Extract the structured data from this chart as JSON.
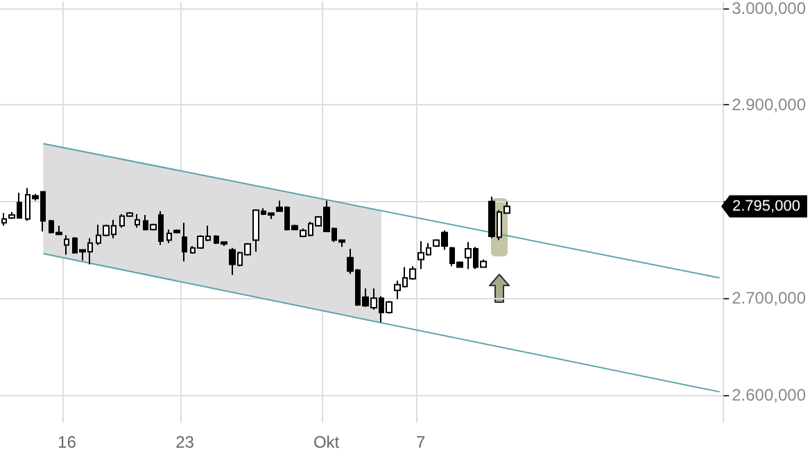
{
  "chart_data": {
    "type": "candlestick",
    "categories": [
      null,
      null,
      null,
      null,
      null,
      null,
      null,
      null,
      "16",
      null,
      null,
      null,
      null,
      null,
      null,
      null,
      null,
      null,
      null,
      null,
      null,
      null,
      null,
      "23",
      null,
      null,
      null,
      null,
      null,
      null,
      null,
      null,
      null,
      null,
      null,
      null,
      null,
      null,
      null,
      null,
      null,
      "Okt",
      null,
      null,
      null,
      null,
      null,
      null,
      null,
      null,
      null,
      null,
      null,
      "7",
      null,
      null,
      null,
      null,
      null,
      null,
      null,
      null,
      null,
      null,
      null,
      null,
      null,
      null,
      null,
      null,
      null,
      null,
      null,
      null,
      null,
      null,
      null,
      null,
      null,
      null,
      null,
      null,
      null,
      null,
      null,
      null,
      null,
      null,
      null,
      null,
      null,
      null
    ],
    "ohlc": [
      [
        2778,
        2788,
        2775,
        2782
      ],
      [
        2783,
        2789,
        2782,
        2786
      ],
      [
        2799,
        2809,
        2783,
        2783
      ],
      [
        2782,
        2814,
        2780,
        2807
      ],
      [
        2806,
        2808,
        2801,
        2803
      ],
      [
        2810,
        2810,
        2769,
        2780
      ],
      [
        2780,
        2781,
        2767,
        2768
      ],
      [
        2768,
        2775,
        2766,
        2766
      ],
      [
        2755,
        2765,
        2745,
        2761
      ],
      [
        2762,
        2763,
        2746,
        2747
      ],
      [
        2750,
        2750,
        2739,
        2748
      ],
      [
        2748,
        2762,
        2735,
        2757
      ],
      [
        2757,
        2776,
        2755,
        2765
      ],
      [
        2765,
        2776,
        2764,
        2775
      ],
      [
        2766,
        2781,
        2762,
        2775
      ],
      [
        2775,
        2787,
        2773,
        2785
      ],
      [
        2785,
        2789,
        2784,
        2788
      ],
      [
        2776,
        2787,
        2773,
        2781
      ],
      [
        2780,
        2786,
        2770,
        2771
      ],
      [
        2771,
        2777,
        2770,
        2776
      ],
      [
        2786,
        2790,
        2755,
        2759
      ],
      [
        2760,
        2771,
        2757,
        2767
      ],
      [
        2770,
        2771,
        2767,
        2768
      ],
      [
        2763,
        2778,
        2738,
        2748
      ],
      [
        2747,
        2754,
        2746,
        2752
      ],
      [
        2752,
        2765,
        2751,
        2764
      ],
      [
        2760,
        2775,
        2759,
        2764
      ],
      [
        2764,
        2765,
        2756,
        2757
      ],
      [
        2758,
        2758,
        2754,
        2756
      ],
      [
        2750,
        2752,
        2724,
        2735
      ],
      [
        2734,
        2748,
        2733,
        2747
      ],
      [
        2745,
        2757,
        2744,
        2756
      ],
      [
        2760,
        2792,
        2748,
        2791
      ],
      [
        2790,
        2793,
        2786,
        2787
      ],
      [
        2788,
        2788,
        2782,
        2786
      ],
      [
        2794,
        2801,
        2790,
        2790
      ],
      [
        2794,
        2795,
        2770,
        2771
      ],
      [
        2775,
        2776,
        2771,
        2771
      ],
      [
        2764,
        2772,
        2763,
        2770
      ],
      [
        2765,
        2779,
        2764,
        2777
      ],
      [
        2775,
        2785,
        2774,
        2784
      ],
      [
        2794,
        2801,
        2769,
        2769
      ],
      [
        2772,
        2773,
        2758,
        2760
      ],
      [
        2760,
        2760,
        2753,
        2758
      ],
      [
        2742,
        2751,
        2725,
        2728
      ],
      [
        2729,
        2730,
        2692,
        2693
      ],
      [
        2701,
        2710,
        2691,
        2692
      ],
      [
        2690,
        2710,
        2688,
        2700
      ],
      [
        2700,
        2702,
        2675,
        2685
      ],
      [
        2685,
        2697,
        2684,
        2696
      ],
      [
        2708,
        2718,
        2699,
        2714
      ],
      [
        2712,
        2732,
        2711,
        2721
      ],
      [
        2720,
        2733,
        2719,
        2730
      ],
      [
        2740,
        2759,
        2730,
        2747
      ],
      [
        2745,
        2757,
        2744,
        2752
      ],
      [
        2754,
        2761,
        2753,
        2760
      ],
      [
        2768,
        2770,
        2750,
        2754
      ],
      [
        2752,
        2753,
        2733,
        2736
      ],
      [
        2737,
        2738,
        2732,
        2732
      ],
      [
        2742,
        2758,
        2730,
        2751
      ],
      [
        2751,
        2753,
        2730,
        2732
      ],
      [
        2732,
        2740,
        2732,
        2738
      ],
      [
        2800,
        2805,
        2762,
        2764
      ],
      [
        2763,
        2791,
        2760,
        2789
      ],
      [
        2788,
        2800,
        2788,
        2795
      ],
      null,
      null,
      null,
      null,
      null,
      null,
      null,
      null,
      null,
      null,
      null,
      null,
      null,
      null,
      null,
      null,
      null,
      null,
      null,
      null,
      null,
      null,
      null,
      null,
      null,
      null,
      null
    ],
    "color": "#000000",
    "series": [
      {
        "type": "line",
        "color": "#5aa5a8",
        "values": [
          null,
          null,
          null,
          null,
          null,
          2860,
          null,
          null,
          null,
          null,
          null,
          null,
          null,
          null,
          null,
          null,
          null,
          null,
          null,
          null,
          null,
          null,
          null,
          null,
          null,
          null,
          null,
          null,
          null,
          null,
          null,
          null,
          null,
          null,
          null,
          null,
          null,
          null,
          null,
          null,
          null,
          null,
          null,
          null,
          null,
          null,
          null,
          null,
          null,
          null,
          null,
          null,
          null,
          null,
          null,
          null,
          null,
          null,
          null,
          null,
          null,
          null,
          null,
          null,
          null,
          null,
          null,
          null,
          null,
          null,
          null,
          null,
          null,
          null,
          null,
          null,
          null,
          null,
          null,
          null,
          null,
          null,
          null,
          null,
          null,
          null,
          null,
          null,
          null,
          null,
          null,
          2721
        ],
        "lower": [
          null,
          null,
          null,
          null,
          null,
          2746,
          null,
          null,
          null,
          null,
          null,
          null,
          null,
          null,
          null,
          null,
          null,
          null,
          null,
          null,
          null,
          null,
          null,
          null,
          null,
          null,
          null,
          null,
          null,
          null,
          null,
          null,
          null,
          null,
          null,
          null,
          null,
          null,
          null,
          null,
          null,
          null,
          null,
          null,
          null,
          null,
          null,
          null,
          2674,
          null,
          null,
          null,
          null,
          null,
          null,
          null,
          null,
          null,
          null,
          null,
          null,
          null,
          null,
          null,
          null,
          null,
          null,
          null,
          null,
          null,
          null,
          null,
          null,
          null,
          null,
          null,
          null,
          null,
          null,
          null,
          null,
          null,
          null,
          null,
          null,
          null,
          null,
          null,
          null,
          null,
          null,
          null
        ],
        "upper": [
          null,
          null,
          null,
          null,
          null,
          2860,
          null,
          null,
          null,
          null,
          null,
          null,
          null,
          null,
          null,
          null,
          null,
          null,
          null,
          null,
          null,
          null,
          null,
          null,
          null,
          null,
          null,
          null,
          null,
          null,
          null,
          null,
          null,
          null,
          null,
          null,
          null,
          null,
          null,
          null,
          null,
          null,
          null,
          null,
          null,
          null,
          null,
          null,
          2791,
          null,
          null,
          null,
          null,
          null,
          null,
          null,
          null,
          null,
          null,
          null,
          null,
          null,
          null,
          null,
          null,
          null,
          null,
          null,
          null,
          null,
          null,
          null,
          null,
          null,
          null,
          null,
          null,
          null,
          null,
          null,
          null,
          null,
          null,
          null,
          null,
          null,
          null,
          null,
          null,
          null,
          null,
          null
        ]
      },
      {
        "type": "line",
        "color": "#5aa5a8",
        "values": [
          null,
          null,
          null,
          null,
          null,
          2746,
          null,
          null,
          null,
          null,
          null,
          null,
          null,
          null,
          null,
          null,
          null,
          null,
          null,
          null,
          null,
          null,
          null,
          null,
          null,
          null,
          null,
          null,
          null,
          null,
          null,
          null,
          null,
          null,
          null,
          null,
          null,
          null,
          null,
          null,
          null,
          null,
          null,
          null,
          null,
          null,
          null,
          null,
          null,
          null,
          null,
          null,
          null,
          null,
          null,
          null,
          null,
          null,
          null,
          null,
          null,
          null,
          null,
          null,
          null,
          null,
          null,
          null,
          null,
          null,
          null,
          null,
          null,
          null,
          null,
          null,
          null,
          null,
          null,
          null,
          null,
          null,
          null,
          null,
          null,
          null,
          null,
          null,
          null,
          null,
          null,
          2603
        ]
      }
    ],
    "ylim": [
      2571,
      3007
    ],
    "yticks": [
      {
        "value": 2600,
        "label": "2.600,000"
      },
      {
        "value": 2700,
        "label": "2.700,000"
      },
      {
        "value": 2800,
        "label": null
      },
      {
        "value": 2900,
        "label": "2.900,000"
      },
      {
        "value": 3000,
        "label": "3.000,000"
      }
    ],
    "annotations": [
      "2.795,000"
    ],
    "grid": true,
    "line_style": "solid"
  }
}
